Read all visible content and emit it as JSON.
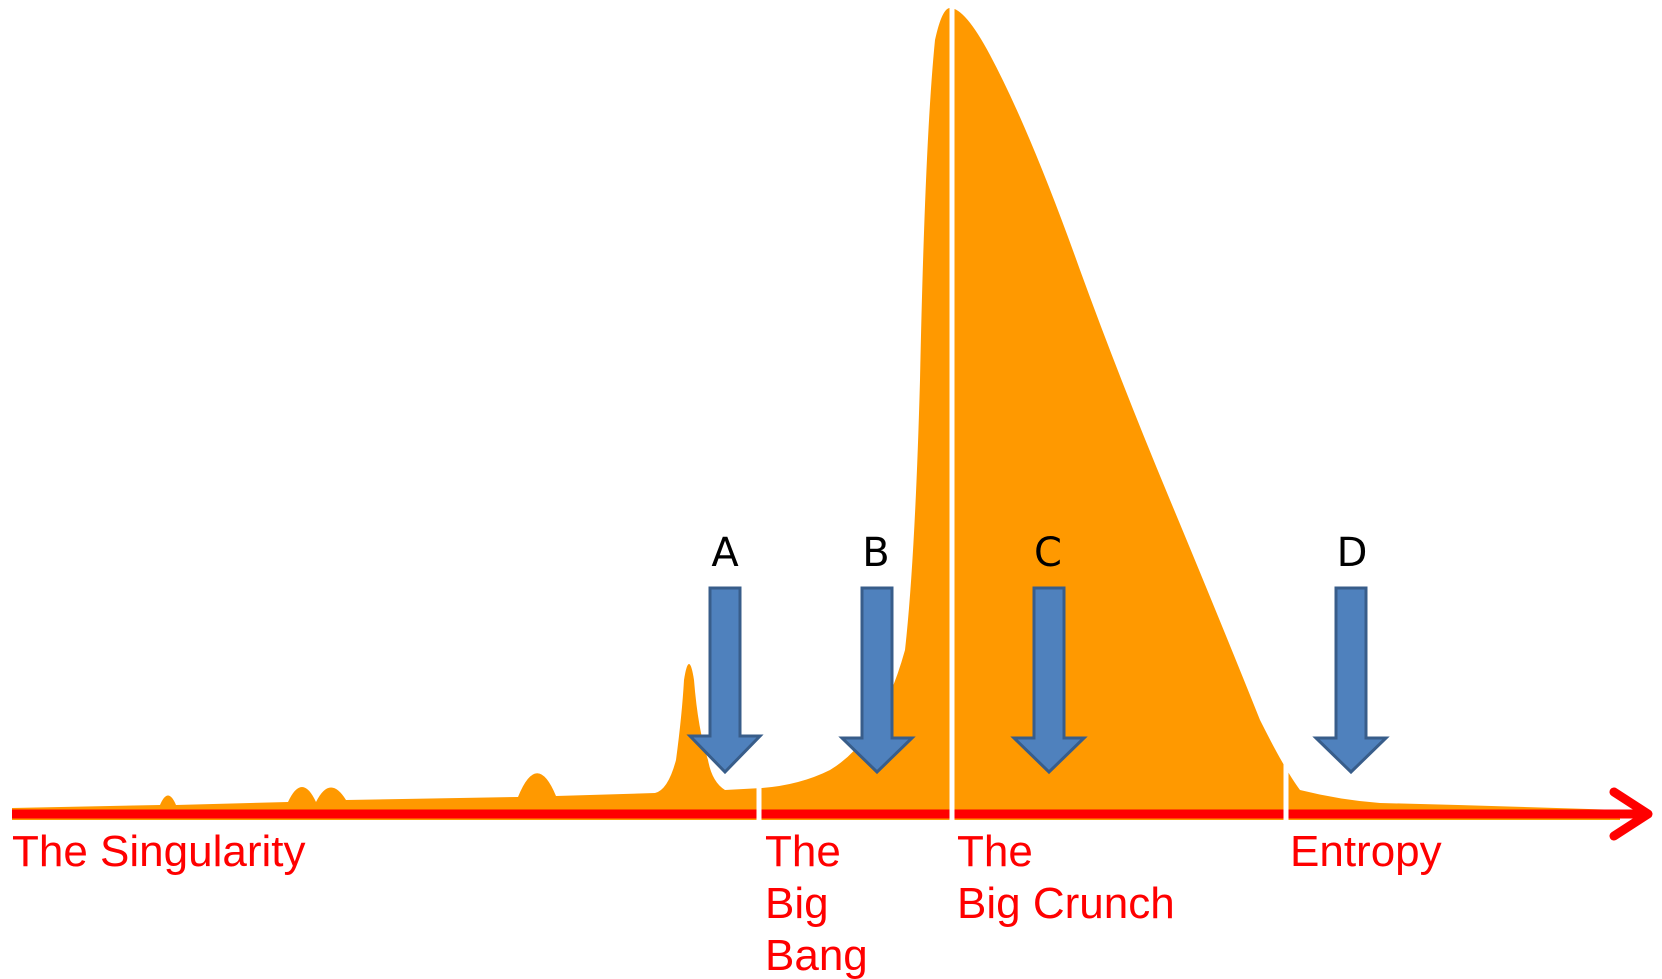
{
  "colors": {
    "background": "#ffffff",
    "curve_fill": "#ff9900",
    "timeline": "#ff0000",
    "divider": "#ffffff",
    "label_text": "#ff0000",
    "marker_arrow_fill": "#4f81bd",
    "marker_arrow_stroke": "#385d8a",
    "marker_letter": "#000000"
  },
  "phases": [
    {
      "id": "singularity",
      "lines": [
        "The Singularity"
      ]
    },
    {
      "id": "big-bang",
      "lines": [
        "The",
        "Big",
        "Bang"
      ]
    },
    {
      "id": "big-crunch",
      "lines": [
        "The",
        "Big Crunch"
      ]
    },
    {
      "id": "entropy",
      "lines": [
        "Entropy"
      ]
    }
  ],
  "markers": [
    {
      "id": "a",
      "letter": "A",
      "icon": "down-arrow-icon"
    },
    {
      "id": "b",
      "letter": "B",
      "icon": "down-arrow-icon"
    },
    {
      "id": "c",
      "letter": "C",
      "icon": "down-arrow-icon"
    },
    {
      "id": "d",
      "letter": "D",
      "icon": "down-arrow-icon"
    }
  ],
  "timeline_icon": "right-arrow-icon"
}
